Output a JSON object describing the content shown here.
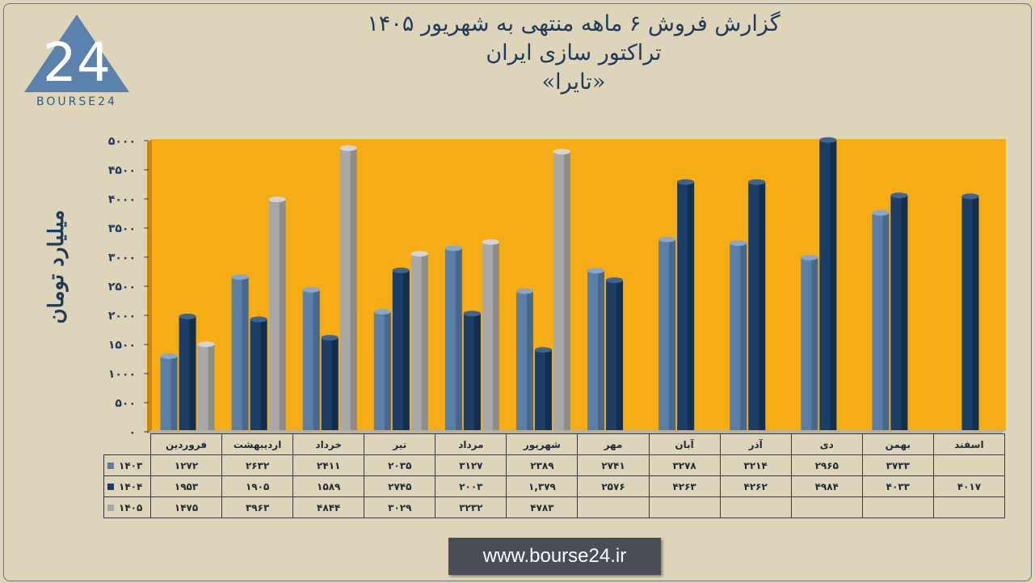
{
  "title": {
    "line1": "گزارش  فروش ۶ ماهه منتهی به شهریور ۱۴۰۵",
    "line2": "تراکتور سازی ایران",
    "line3": "«تایرا»"
  },
  "logo": {
    "text": "BOURSE24",
    "mark": "24"
  },
  "url": "www.bourse24.ir",
  "colors": {
    "s1403": "#5b7fa6",
    "s1404": "#1b3d66",
    "s1405": "#a8a8a8",
    "plot_bg": "#f6ad15",
    "axis_text": "#1d3a5c"
  },
  "chart_data": {
    "type": "bar",
    "title": "گزارش  فروش ۶ ماهه منتهی به شهریور ۱۴۰۵",
    "ylabel": "میلیارد تومان",
    "ylim": [
      0,
      5000
    ],
    "yticks": [
      "۰",
      "۵۰۰",
      "۱۰۰۰",
      "۱۵۰۰",
      "۲۰۰۰",
      "۲۵۰۰",
      "۳۰۰۰",
      "۳۵۰۰",
      "۴۰۰۰",
      "۴۵۰۰",
      "۵۰۰۰"
    ],
    "categories": [
      "فروردین",
      "اردیبهشت",
      "خرداد",
      "تیر",
      "مرداد",
      "شهریور",
      "مهر",
      "آبان",
      "آذر",
      "دی",
      "بهمن",
      "اسفند"
    ],
    "series": [
      {
        "name": "۱۴۰۳",
        "values": [
          1272,
          2632,
          2411,
          2035,
          3127,
          2389,
          2741,
          3278,
          3214,
          2965,
          3733,
          null
        ],
        "labels": [
          "۱۲۷۲",
          "۲۶۳۲",
          "۲۴۱۱",
          "۲۰۳۵",
          "۳۱۲۷",
          "۲۳۸۹",
          "۲۷۴۱",
          "۳۲۷۸",
          "۳۲۱۴",
          "۲۹۶۵",
          "۳۷۳۳",
          ""
        ]
      },
      {
        "name": "۱۴۰۴",
        "values": [
          1953,
          1905,
          1589,
          2745,
          2003,
          1379,
          2576,
          4263,
          4262,
          4984,
          4033,
          4017
        ],
        "labels": [
          "۱۹۵۳",
          "۱۹۰۵",
          "۱۵۸۹",
          "۲۷۴۵",
          "۲۰۰۳",
          "۱,۳۷۹",
          "۲۵۷۶",
          "۴۲۶۳",
          "۴۲۶۲",
          "۴۹۸۴",
          "۴۰۳۳",
          "۴۰۱۷"
        ]
      },
      {
        "name": "۱۴۰۵",
        "values": [
          1475,
          3963,
          4844,
          3029,
          3232,
          4783,
          null,
          null,
          null,
          null,
          null,
          null
        ],
        "labels": [
          "۱۴۷۵",
          "۳۹۶۳",
          "۴۸۴۴",
          "۳۰۲۹",
          "۳۲۳۲",
          "۴۷۸۳",
          "",
          "",
          "",
          "",
          "",
          ""
        ]
      }
    ]
  }
}
